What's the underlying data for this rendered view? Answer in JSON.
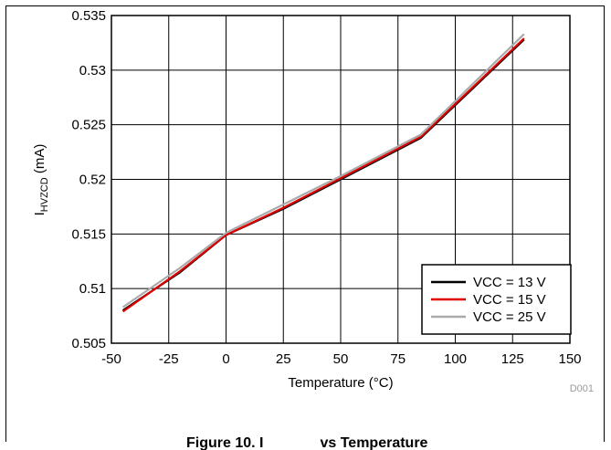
{
  "chart_data": {
    "type": "line",
    "title": "",
    "xlabel": "Temperature (°C)",
    "ylabel_main": "I",
    "ylabel_sub": "HVZCD",
    "ylabel_unit": " (mA)",
    "xlim": [
      -50,
      150
    ],
    "ylim": [
      0.505,
      0.535
    ],
    "xticks": [
      -50,
      -25,
      0,
      25,
      50,
      75,
      100,
      125,
      150
    ],
    "yticks": [
      0.505,
      0.51,
      0.515,
      0.52,
      0.525,
      0.53,
      0.535
    ],
    "xtick_labels": [
      "-50",
      "-25",
      "0",
      "25",
      "50",
      "75",
      "100",
      "125",
      "150"
    ],
    "ytick_labels": [
      "0.505",
      "0.51",
      "0.515",
      "0.52",
      "0.525",
      "0.53",
      "0.535"
    ],
    "grid": true,
    "legend_position": "bottom-right",
    "series": [
      {
        "name": "VCC = 13 V",
        "color": "#000000",
        "x": [
          -45,
          -20,
          0,
          25,
          50,
          85,
          130
        ],
        "y": [
          0.508,
          0.5115,
          0.5149,
          0.5173,
          0.52,
          0.5238,
          0.5328
        ]
      },
      {
        "name": "VCC = 15 V",
        "color": "#e00000",
        "x": [
          -45,
          -20,
          0,
          25,
          50,
          85,
          130
        ],
        "y": [
          0.5079,
          0.5116,
          0.5149,
          0.5174,
          0.5201,
          0.5239,
          0.5329
        ]
      },
      {
        "name": "VCC = 25 V",
        "color": "#aaaaaa",
        "x": [
          -45,
          -20,
          0,
          25,
          50,
          85,
          130
        ],
        "y": [
          0.5083,
          0.5119,
          0.5151,
          0.5177,
          0.5203,
          0.5241,
          0.5333
        ]
      }
    ]
  },
  "figure_code": "D001",
  "caption_partial": "Figure 10. I",
  "caption_end": "vs Temperature"
}
